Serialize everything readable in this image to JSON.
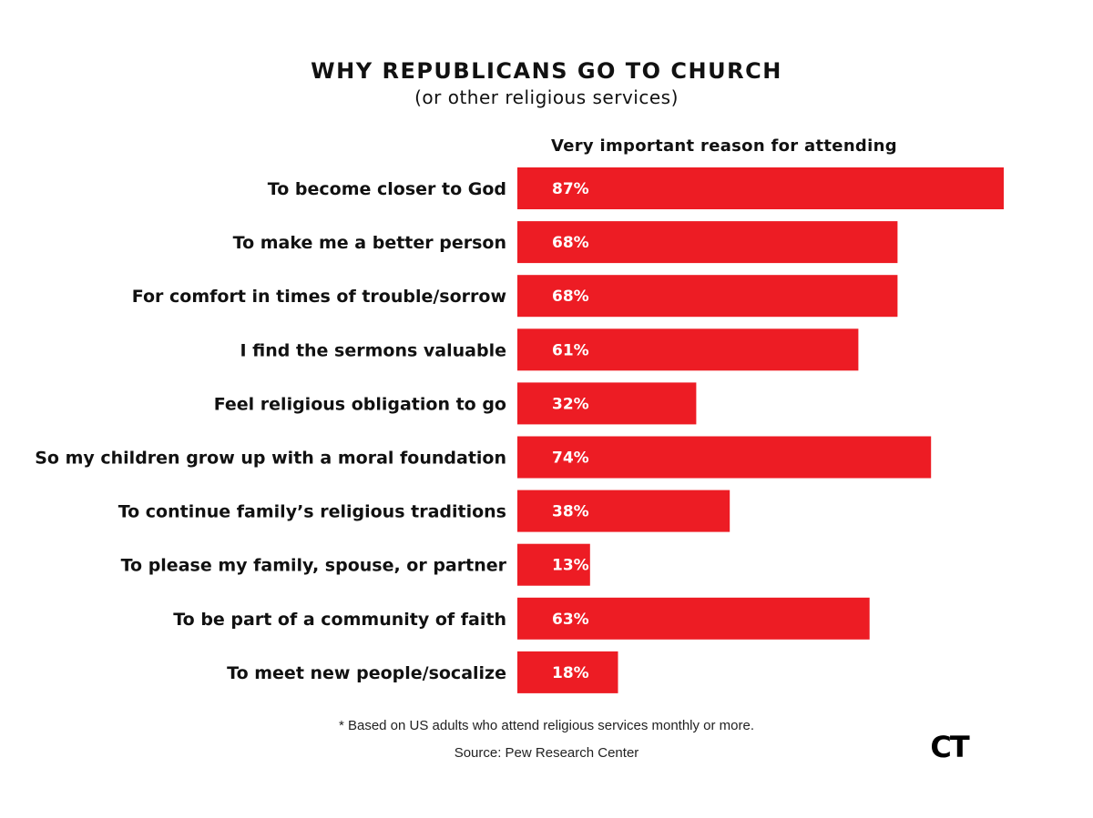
{
  "chart_data": {
    "type": "bar",
    "orientation": "horizontal",
    "title": "WHY REPUBLICANS GO TO CHURCH",
    "subtitle": "(or other religious services)",
    "column_header": "Very important reason for attending",
    "categories": [
      "To become closer to God",
      "To make me a better person",
      "For comfort in times of trouble/sorrow",
      "I find the sermons valuable",
      "Feel religious obligation to go",
      "So my children grow up with a moral foundation",
      "To continue family’s religious traditions",
      "To please my family, spouse, or partner",
      "To be part of a community of faith",
      "To meet new people/socalize"
    ],
    "values": [
      87,
      68,
      68,
      61,
      32,
      74,
      38,
      13,
      63,
      18
    ],
    "value_labels": [
      "87%",
      "68%",
      "68%",
      "61%",
      "32%",
      "74%",
      "38%",
      "13%",
      "63%",
      "18%"
    ],
    "xlim": [
      0,
      87
    ],
    "bar_color": "#ed1c24",
    "value_label_color": "#ffffff",
    "grid": false,
    "legend": "none"
  },
  "footnote": {
    "mark": "*",
    "text": "Based on US adults who attend religious services monthly or more."
  },
  "source": "Source: Pew Research Center",
  "logo": {
    "text": "CT",
    "color": "#000000"
  }
}
